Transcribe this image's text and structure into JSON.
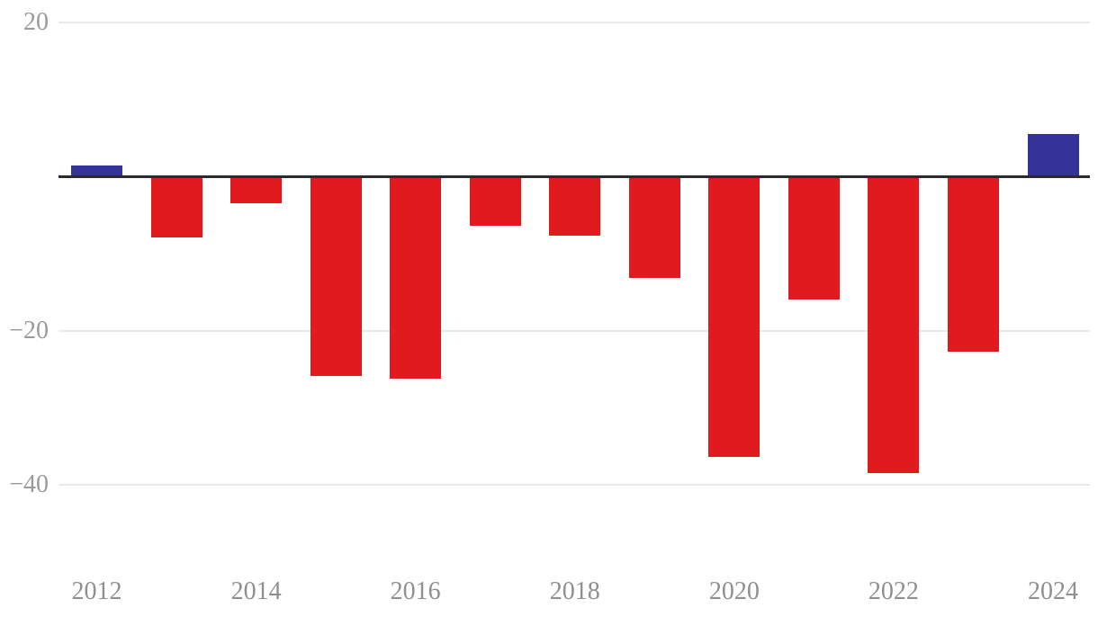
{
  "chart_data": {
    "type": "bar",
    "title": "",
    "xlabel": "",
    "ylabel": "",
    "categories": [
      "2012",
      "2013",
      "2014",
      "2015",
      "2016",
      "2017",
      "2018",
      "2019",
      "2020",
      "2021",
      "2022",
      "2023",
      "2024"
    ],
    "values": [
      1.5,
      -7.9,
      -3.5,
      -25.9,
      -26.2,
      -6.4,
      -7.7,
      -13.1,
      -36.4,
      -16.0,
      -38.5,
      -22.7,
      5.6
    ],
    "x_tick_labels": [
      "2012",
      "2014",
      "2016",
      "2018",
      "2020",
      "2022",
      "2024"
    ],
    "y_ticks": [
      {
        "label": "20",
        "value": 20
      },
      {
        "label": "−20",
        "value": -20
      },
      {
        "label": "−40",
        "value": -40
      }
    ],
    "ylim": [
      -47,
      23
    ],
    "grid": true,
    "legend_position": "none",
    "colors": {
      "positive_bar": "#333399",
      "negative_bar": "#e11a1d",
      "zero_axis_line": "#2b2b2b",
      "gridline": "#e9e9e9",
      "y_tick_label": "#9a9a9a",
      "x_tick_label": "#8f8f8f",
      "background": "#ffffff"
    }
  }
}
